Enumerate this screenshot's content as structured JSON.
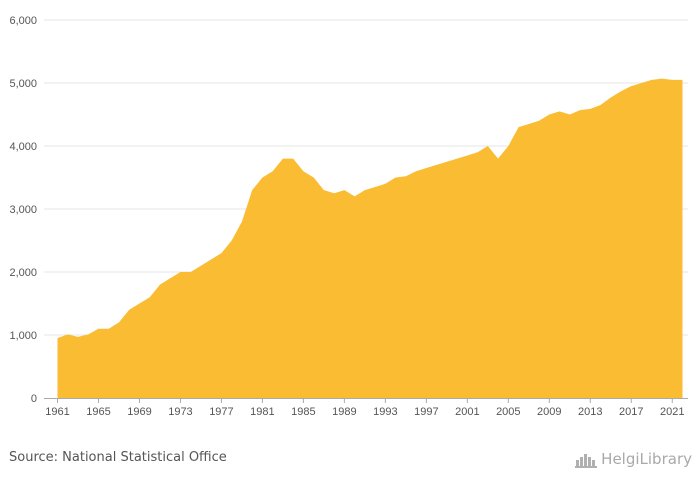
{
  "footer": {
    "source": "Source: National Statistical Office",
    "brand": "HelgiLibrary"
  },
  "chart_data": {
    "type": "area",
    "title": "",
    "xlabel": "",
    "ylabel": "",
    "color": "#F9BC33",
    "grid": true,
    "ylim": [
      0,
      6000
    ],
    "xlim": [
      1961,
      2022
    ],
    "y_ticks": [
      0,
      1000,
      2000,
      3000,
      4000,
      5000,
      6000
    ],
    "y_tick_labels": [
      "0",
      "1,000",
      "2,000",
      "3,000",
      "4,000",
      "5,000",
      "6,000"
    ],
    "x_ticks": [
      1961,
      1965,
      1969,
      1973,
      1977,
      1981,
      1985,
      1989,
      1993,
      1997,
      2001,
      2005,
      2009,
      2013,
      2017,
      2021
    ],
    "x_tick_labels": [
      "1961",
      "1965",
      "1969",
      "1973",
      "1977",
      "1981",
      "1985",
      "1989",
      "1993",
      "1997",
      "2001",
      "2005",
      "2009",
      "2013",
      "2017",
      "2021"
    ],
    "x": [
      1961,
      1962,
      1963,
      1964,
      1965,
      1966,
      1967,
      1968,
      1969,
      1970,
      1971,
      1972,
      1973,
      1974,
      1975,
      1976,
      1977,
      1978,
      1979,
      1980,
      1981,
      1982,
      1983,
      1984,
      1985,
      1986,
      1987,
      1988,
      1989,
      1990,
      1991,
      1992,
      1993,
      1994,
      1995,
      1996,
      1997,
      1998,
      1999,
      2000,
      2001,
      2002,
      2003,
      2004,
      2005,
      2006,
      2007,
      2008,
      2009,
      2010,
      2011,
      2012,
      2013,
      2014,
      2015,
      2016,
      2017,
      2018,
      2019,
      2020,
      2021,
      2022
    ],
    "values": [
      950,
      1010,
      970,
      1010,
      1100,
      1100,
      1200,
      1400,
      1500,
      1600,
      1800,
      1900,
      2000,
      2000,
      2100,
      2200,
      2300,
      2500,
      2800,
      3300,
      3500,
      3600,
      3800,
      3800,
      3600,
      3500,
      3300,
      3250,
      3300,
      3200,
      3300,
      3350,
      3400,
      3500,
      3520,
      3600,
      3650,
      3700,
      3750,
      3800,
      3850,
      3900,
      4000,
      3800,
      4000,
      4300,
      4350,
      4400,
      4500,
      4550,
      4500,
      4570,
      4590,
      4650,
      4770,
      4870,
      4950,
      5000,
      5050,
      5070,
      5050,
      5050
    ]
  }
}
